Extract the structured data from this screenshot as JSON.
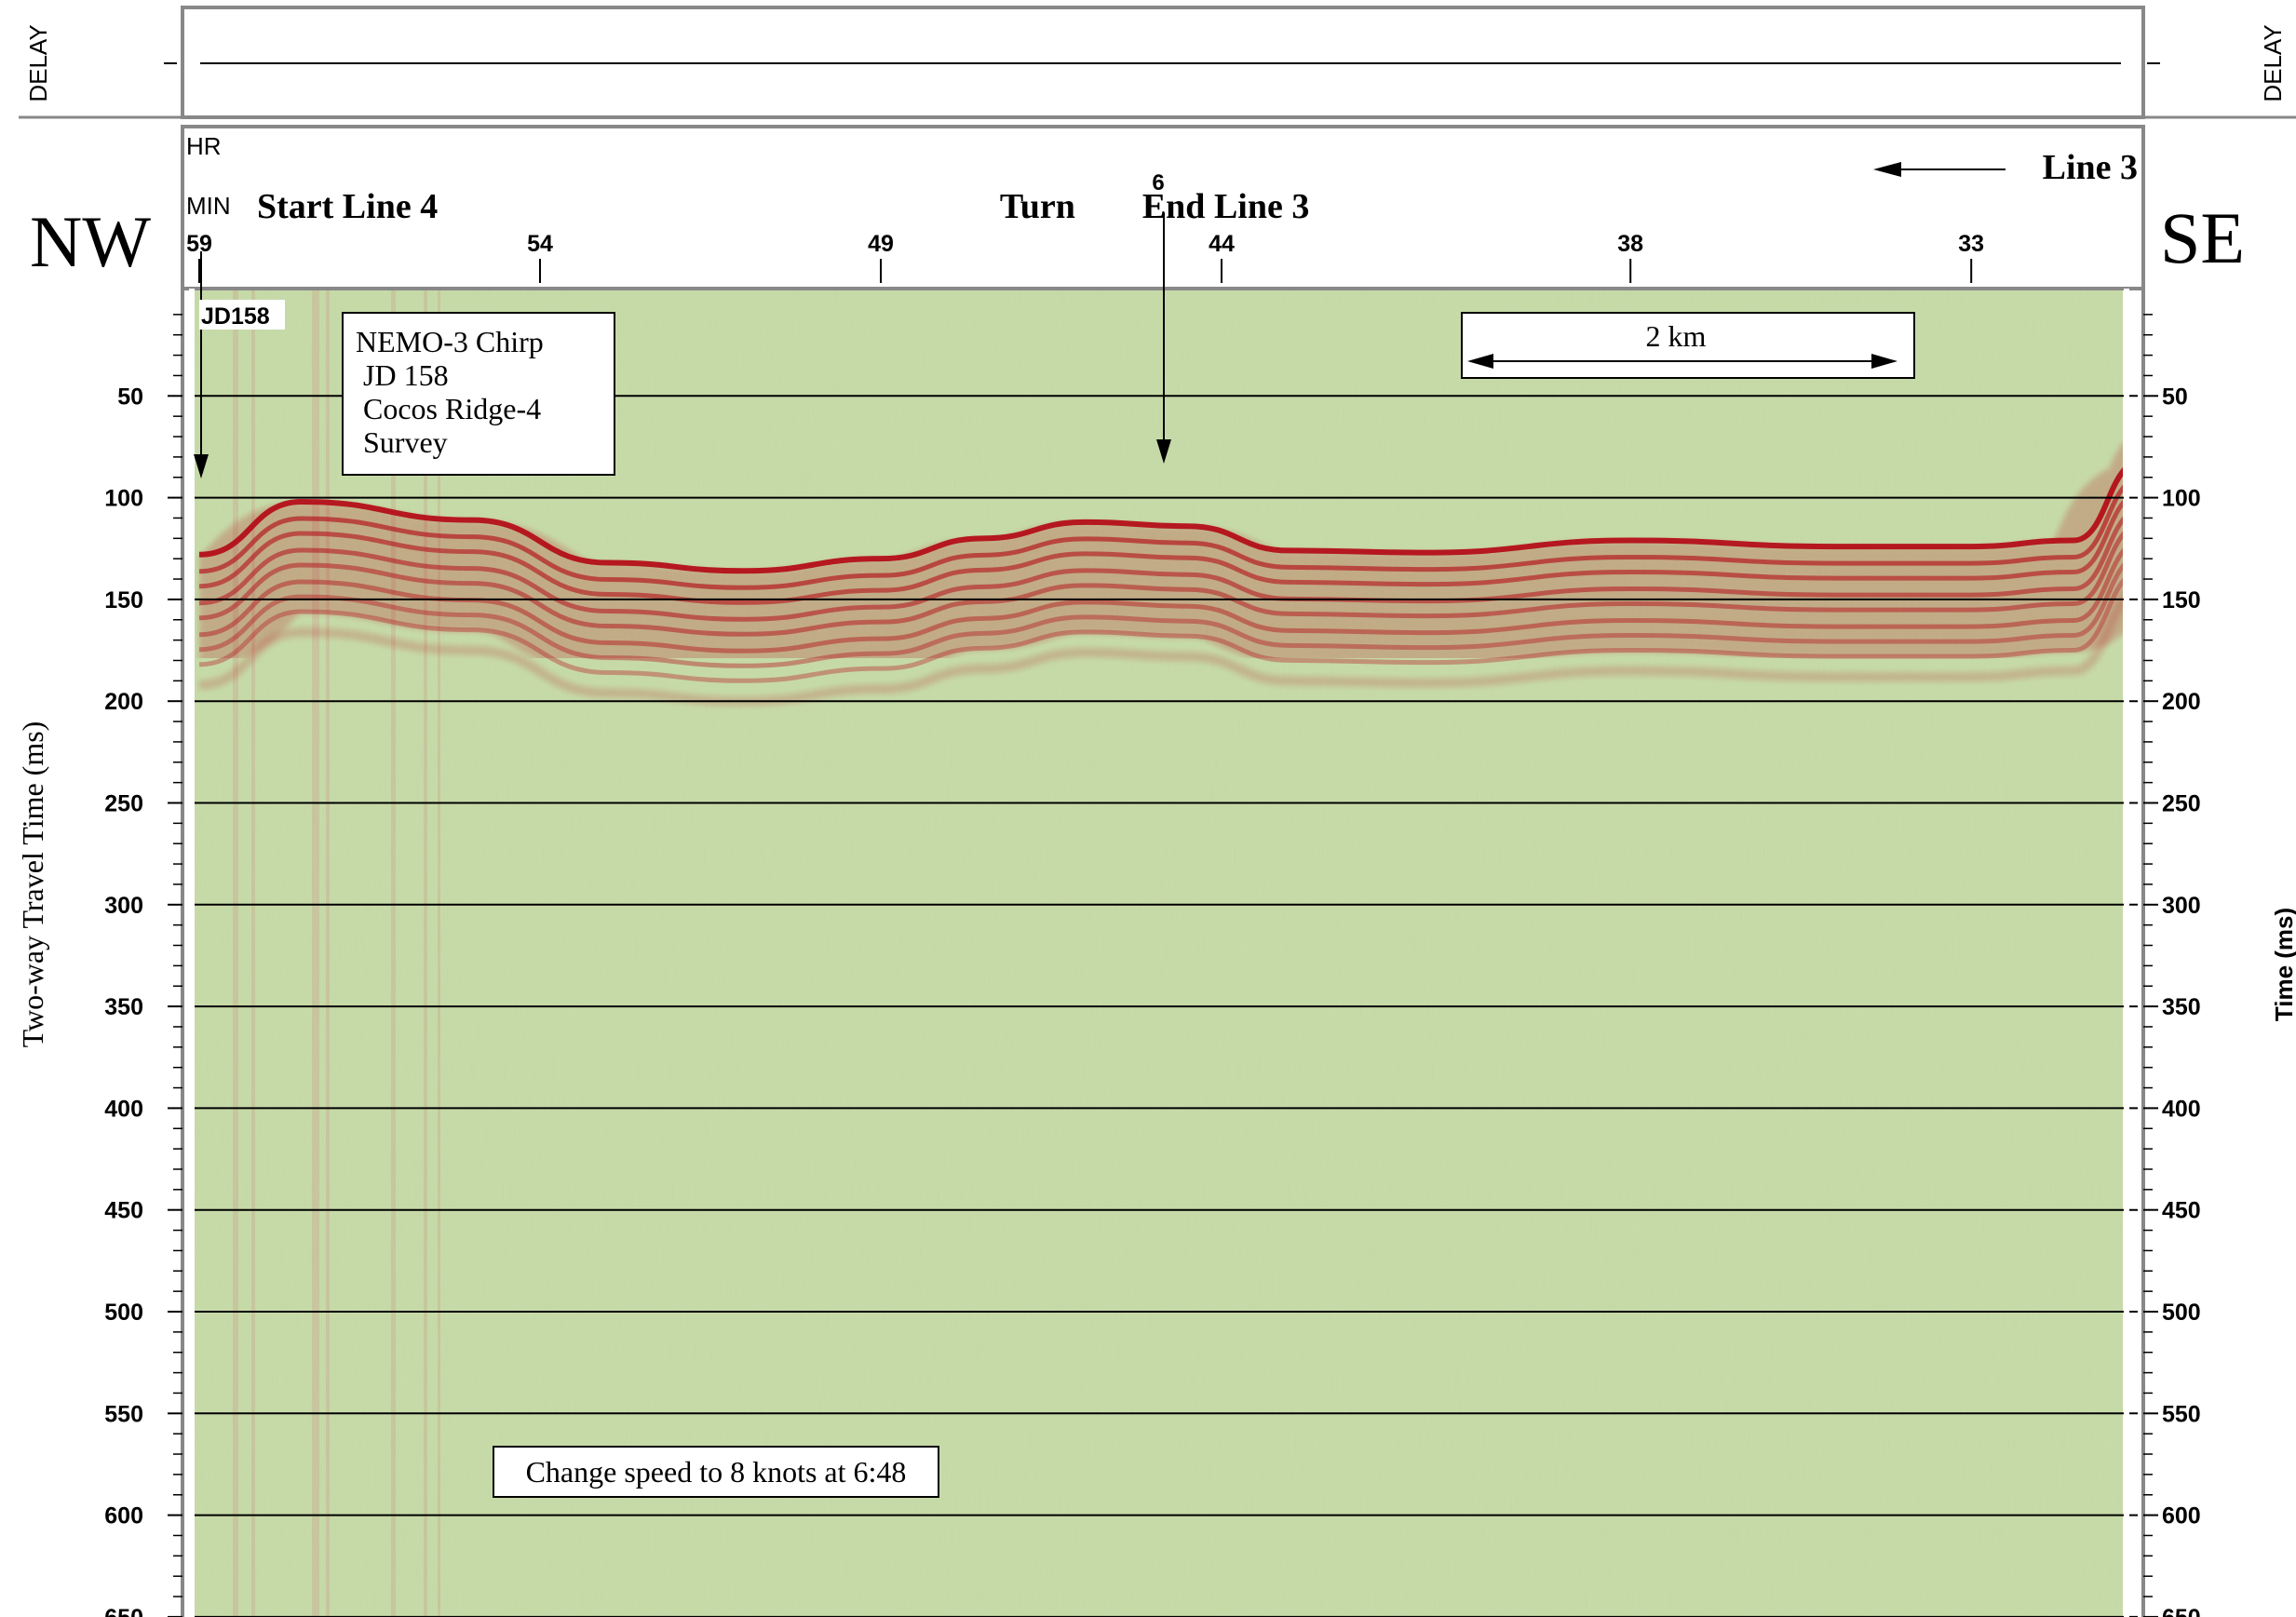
{
  "chart_data": {
    "type": "seismic-profile",
    "orientation": {
      "left": "NW",
      "right": "SE"
    },
    "delay_label_left": "DELAY",
    "delay_label_right": "DELAY",
    "hr_label": "HR",
    "min_label": "MIN",
    "hr_value": "6",
    "time_ticks": [
      {
        "label": "59",
        "minute": 59
      },
      {
        "label": "54",
        "minute": 54
      },
      {
        "label": "49",
        "minute": 49
      },
      {
        "label": "44",
        "minute": 44
      },
      {
        "label": "38",
        "minute": 38
      },
      {
        "label": "33",
        "minute": 33
      }
    ],
    "markers": [
      {
        "label": "Start Line 4",
        "minute": 59
      },
      {
        "label": "Turn",
        "minute": 46.7
      },
      {
        "label": "End Line 3",
        "minute": 45.3
      },
      {
        "label": "Line 3",
        "minute": 29.5
      }
    ],
    "jd_label": "JD158",
    "scale_bar": "2 km",
    "info_box": [
      "NEMO-3 Chirp",
      "JD 158",
      "Cocos Ridge-4",
      "Survey"
    ],
    "annotation": "Change speed to 8 knots at 6:48",
    "ylabel_left": "Two-way Travel Time (ms)",
    "ylabel_right": "Time (ms)",
    "ylim": [
      0,
      660
    ],
    "y_ticks": [
      50,
      100,
      150,
      200,
      250,
      300,
      350,
      400,
      450,
      500,
      550,
      600,
      650
    ],
    "y_tick_labels": [
      "50",
      "100",
      "150",
      "200",
      "250",
      "300",
      "350",
      "400",
      "450",
      "500",
      "550",
      "600",
      "650"
    ],
    "grid": true,
    "seafloor_reflector": {
      "x_minute": [
        59,
        57.5,
        55,
        53,
        51,
        49,
        47.5,
        46,
        44.5,
        43,
        41,
        38,
        35,
        33,
        31.5,
        30.5,
        30
      ],
      "y_ms": [
        128,
        102,
        111,
        132,
        136,
        130,
        120,
        112,
        114,
        126,
        127,
        121,
        124,
        124,
        121,
        82,
        60
      ]
    },
    "colors": {
      "background": "#c8dcaa",
      "reflector": "#b40f19",
      "frame": "#888888"
    }
  }
}
